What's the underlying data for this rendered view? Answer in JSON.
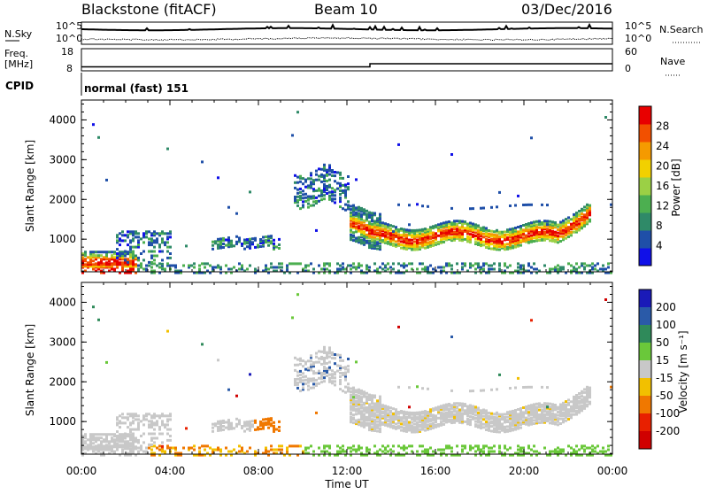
{
  "header": {
    "station": "Blackstone (fitACF)",
    "beam": "Beam 10",
    "date": "03/Dec/2016"
  },
  "top_panels": {
    "nsky": {
      "label": "N.Sky",
      "tick_top": "10^5",
      "tick_bottom": "10^0",
      "right_label": "N.Search",
      "right_tick_top": "10^5",
      "right_tick_bottom": "10^0"
    },
    "freq": {
      "label_line1": "Freq.",
      "label_line2": "[MHz]",
      "tick_top": "18",
      "tick_bottom": "8",
      "right_label": "Nave",
      "right_tick_top": "60",
      "right_tick_bottom": "0"
    },
    "cpid": {
      "label": "CPID",
      "value": "normal (fast) 151"
    }
  },
  "chart_data": [
    {
      "type": "heatmap",
      "panel": "power",
      "ylabel": "Slant Range [km]",
      "xlabel": "",
      "ylim": [
        180,
        4500
      ],
      "xlim": [
        0,
        24
      ],
      "yticks": [
        "1000",
        "2000",
        "3000",
        "4000"
      ],
      "colorbar": {
        "label": "Power [dB]",
        "ticks": [
          "4",
          "8",
          "12",
          "16",
          "20",
          "24",
          "28"
        ],
        "colors": [
          "#1010e8",
          "#1f4fa8",
          "#2f8a68",
          "#4caf50",
          "#9bd045",
          "#f2d000",
          "#f59a00",
          "#f25000",
          "#e80000"
        ]
      },
      "echo_bands": [
        {
          "t_start": 0.0,
          "t_end": 2.5,
          "r_low": 200,
          "r_high": 700,
          "level": "high"
        },
        {
          "t_start": 1.5,
          "t_end": 4.0,
          "r_low": 900,
          "r_high": 1250,
          "level": "low"
        },
        {
          "t_start": 5.8,
          "t_end": 9.0,
          "r_low": 800,
          "r_high": 1100,
          "level": "low"
        },
        {
          "t_start": 9.5,
          "t_end": 12.0,
          "r_low": 1800,
          "r_high": 2900,
          "level": "low"
        },
        {
          "t_start": 12.0,
          "t_end": 23.0,
          "r_low": 800,
          "r_high": 1600,
          "level": "high"
        }
      ]
    },
    {
      "type": "heatmap",
      "panel": "velocity",
      "ylabel": "Slant Range [km]",
      "xlabel": "Time UT",
      "ylim": [
        180,
        4500
      ],
      "xlim": [
        0,
        24
      ],
      "xticks": [
        "00:00",
        "04:00",
        "08:00",
        "12:00",
        "16:00",
        "20:00",
        "00:00"
      ],
      "yticks": [
        "1000",
        "2000",
        "3000",
        "4000"
      ],
      "colorbar": {
        "label": "Velocity [m s⁻¹]",
        "ticks": [
          "200",
          "100",
          "50",
          "15",
          "-15",
          "-50",
          "-100",
          "-200"
        ],
        "colors": [
          "#1a1ab8",
          "#2a5aa8",
          "#2f8a5a",
          "#6ac83a",
          "#c8c8c8",
          "#f2c000",
          "#f07800",
          "#e82000",
          "#d00000"
        ]
      }
    }
  ]
}
